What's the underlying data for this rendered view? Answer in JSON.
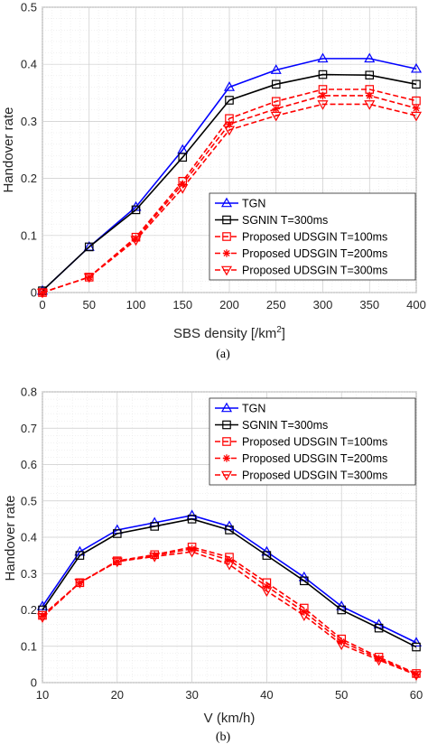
{
  "chart_data": [
    {
      "type": "line",
      "caption": "(a)",
      "xlabel": "SBS density [/km",
      "xlabel_sup": "2",
      "xlabel_end": "]",
      "ylabel": "Handover rate",
      "xlim": [
        0,
        400
      ],
      "ylim": [
        0,
        0.5
      ],
      "xticks": [
        0,
        50,
        100,
        150,
        200,
        250,
        300,
        350,
        400
      ],
      "yticks": [
        0,
        0.1,
        0.2,
        0.3,
        0.4,
        0.5
      ],
      "xtick_labels": [
        "0",
        "50",
        "100",
        "150",
        "200",
        "250",
        "300",
        "350",
        "400"
      ],
      "ytick_labels": [
        "0",
        "0.1",
        "0.2",
        "0.3",
        "0.4",
        "0.5"
      ],
      "grid": true,
      "legend_position": "bottom-right",
      "x": [
        0,
        50,
        100,
        150,
        200,
        250,
        300,
        350,
        400
      ],
      "series": [
        {
          "name": "TGN",
          "color": "#0000ff",
          "dash": "solid",
          "marker": "triangle-up",
          "values": [
            0.003,
            0.08,
            0.15,
            0.25,
            0.36,
            0.39,
            0.41,
            0.41,
            0.392
          ]
        },
        {
          "name": "SGNIN T=300ms",
          "color": "#000000",
          "dash": "solid",
          "marker": "square",
          "values": [
            0.003,
            0.08,
            0.145,
            0.237,
            0.337,
            0.365,
            0.382,
            0.381,
            0.365
          ]
        },
        {
          "name": "Proposed UDSGIN T=100ms",
          "color": "#ff0000",
          "dash": "dashed",
          "marker": "square",
          "values": [
            0,
            0.027,
            0.097,
            0.195,
            0.305,
            0.335,
            0.356,
            0.356,
            0.336
          ]
        },
        {
          "name": "Proposed UDSGIN T=200ms",
          "color": "#ff0000",
          "dash": "dashed",
          "marker": "asterisk",
          "values": [
            0,
            0.027,
            0.095,
            0.19,
            0.295,
            0.322,
            0.345,
            0.345,
            0.323
          ]
        },
        {
          "name": "Proposed UDSGIN T=300ms",
          "color": "#ff0000",
          "dash": "dashed",
          "marker": "triangle-down",
          "values": [
            0,
            0.027,
            0.092,
            0.183,
            0.285,
            0.31,
            0.33,
            0.33,
            0.31
          ]
        }
      ]
    },
    {
      "type": "line",
      "caption": "(b)",
      "xlabel": "V (km/h)",
      "ylabel": "Handover rate",
      "xlim": [
        10,
        60
      ],
      "ylim": [
        0,
        0.8
      ],
      "xticks": [
        10,
        20,
        30,
        40,
        50,
        60
      ],
      "yticks": [
        0,
        0.1,
        0.2,
        0.3,
        0.4,
        0.5,
        0.6,
        0.7,
        0.8
      ],
      "xtick_labels": [
        "10",
        "20",
        "30",
        "40",
        "50",
        "60"
      ],
      "ytick_labels": [
        "0",
        "0.1",
        "0.2",
        "0.3",
        "0.4",
        "0.5",
        "0.6",
        "0.7",
        "0.8"
      ],
      "grid": true,
      "legend_position": "top-right",
      "x": [
        10,
        15,
        20,
        25,
        30,
        35,
        40,
        45,
        50,
        55,
        60
      ],
      "series": [
        {
          "name": "TGN",
          "color": "#0000ff",
          "dash": "solid",
          "marker": "triangle-up",
          "values": [
            0.21,
            0.36,
            0.42,
            0.44,
            0.46,
            0.43,
            0.36,
            0.29,
            0.21,
            0.16,
            0.11
          ]
        },
        {
          "name": "SGNIN T=300ms",
          "color": "#000000",
          "dash": "solid",
          "marker": "square",
          "values": [
            0.2,
            0.35,
            0.41,
            0.43,
            0.45,
            0.42,
            0.35,
            0.28,
            0.2,
            0.15,
            0.098
          ]
        },
        {
          "name": "Proposed UDSGIN T=100ms",
          "color": "#ff0000",
          "dash": "dashed",
          "marker": "square",
          "values": [
            0.185,
            0.275,
            0.335,
            0.352,
            0.373,
            0.345,
            0.275,
            0.205,
            0.12,
            0.07,
            0.025
          ]
        },
        {
          "name": "Proposed UDSGIN T=200ms",
          "color": "#ff0000",
          "dash": "dashed",
          "marker": "asterisk",
          "values": [
            0.183,
            0.275,
            0.333,
            0.35,
            0.368,
            0.337,
            0.265,
            0.195,
            0.113,
            0.066,
            0.023
          ]
        },
        {
          "name": "Proposed UDSGIN T=300ms",
          "color": "#ff0000",
          "dash": "dashed",
          "marker": "triangle-down",
          "values": [
            0.18,
            0.275,
            0.333,
            0.347,
            0.36,
            0.325,
            0.252,
            0.185,
            0.105,
            0.062,
            0.021
          ]
        }
      ]
    }
  ]
}
